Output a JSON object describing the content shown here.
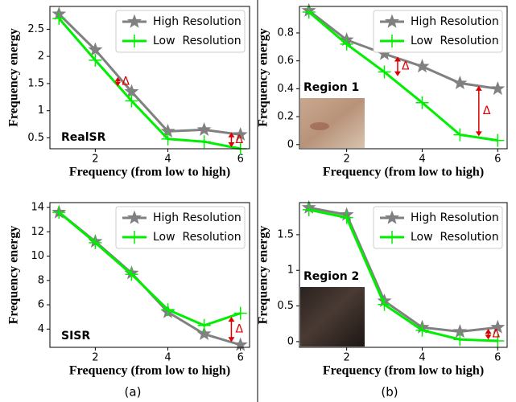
{
  "panel_labels": [
    "(a)",
    "(b)"
  ],
  "chart_data": [
    {
      "type": "line",
      "xlabel": "Frequency (from low to high)",
      "ylabel": "Frequency energy",
      "x": [
        1,
        2,
        3,
        4,
        5,
        6
      ],
      "xlim": [
        0.75,
        6.25
      ],
      "xticks": [
        2,
        4,
        6
      ],
      "ylim": [
        0.3,
        2.92
      ],
      "yticks": [
        0.5,
        1.0,
        1.5,
        2.0,
        2.5
      ],
      "legend": "upper right",
      "annotations": [
        "RealSR",
        "Δ",
        "Δ"
      ],
      "series": [
        {
          "name": "High Resolution",
          "color": "#808080",
          "marker": "star",
          "values": [
            2.78,
            2.12,
            1.35,
            0.62,
            0.65,
            0.56
          ]
        },
        {
          "name": "Low  Resolution",
          "color": "#00ee00",
          "marker": "plus",
          "values": [
            2.7,
            1.93,
            1.18,
            0.48,
            0.43,
            0.3
          ]
        }
      ]
    },
    {
      "type": "line",
      "xlabel": "Frequency (from low to high)",
      "ylabel": "Frequency energy",
      "x": [
        1,
        2,
        3,
        4,
        5,
        6
      ],
      "xlim": [
        0.75,
        6.25
      ],
      "xticks": [
        2,
        4,
        6
      ],
      "ylim": [
        -0.03,
        0.99
      ],
      "yticks": [
        0.0,
        0.2,
        0.4,
        0.6,
        0.8
      ],
      "legend": "upper right",
      "annotations": [
        "Region 1",
        "Δ",
        "Δ"
      ],
      "series": [
        {
          "name": "High Resolution",
          "color": "#808080",
          "marker": "star",
          "values": [
            0.96,
            0.75,
            0.65,
            0.56,
            0.44,
            0.4
          ]
        },
        {
          "name": "Low  Resolution",
          "color": "#00ee00",
          "marker": "plus",
          "values": [
            0.95,
            0.72,
            0.52,
            0.3,
            0.07,
            0.03
          ]
        }
      ]
    },
    {
      "type": "line",
      "xlabel": "Frequency (from low to high)",
      "ylabel": "Frequency energy",
      "x": [
        1,
        2,
        3,
        4,
        5,
        6
      ],
      "xlim": [
        0.75,
        6.25
      ],
      "xticks": [
        2,
        4,
        6
      ],
      "ylim": [
        2.5,
        14.4
      ],
      "yticks": [
        4,
        6,
        8,
        10,
        12,
        14
      ],
      "legend": "upper right",
      "annotations": [
        "SISR",
        "Δ"
      ],
      "series": [
        {
          "name": "High Resolution",
          "color": "#808080",
          "marker": "star",
          "values": [
            13.6,
            11.2,
            8.6,
            5.4,
            3.6,
            2.7
          ]
        },
        {
          "name": "Low  Resolution",
          "color": "#00ee00",
          "marker": "plus",
          "values": [
            13.6,
            11.1,
            8.5,
            5.6,
            4.3,
            5.3
          ]
        }
      ]
    },
    {
      "type": "line",
      "xlabel": "Frequency (from low to high)",
      "ylabel": "Frequency energy",
      "x": [
        1,
        2,
        3,
        4,
        5,
        6
      ],
      "xlim": [
        0.75,
        6.25
      ],
      "xticks": [
        2,
        4,
        6
      ],
      "ylim": [
        -0.08,
        1.95
      ],
      "yticks": [
        0.0,
        0.5,
        1.0,
        1.5
      ],
      "legend": "upper right",
      "annotations": [
        "Region 2",
        "Δ"
      ],
      "series": [
        {
          "name": "High Resolution",
          "color": "#808080",
          "marker": "star",
          "values": [
            1.88,
            1.78,
            0.57,
            0.2,
            0.14,
            0.2
          ]
        },
        {
          "name": "Low  Resolution",
          "color": "#00ee00",
          "marker": "plus",
          "values": [
            1.85,
            1.74,
            0.52,
            0.16,
            0.03,
            0.01
          ]
        }
      ]
    }
  ]
}
